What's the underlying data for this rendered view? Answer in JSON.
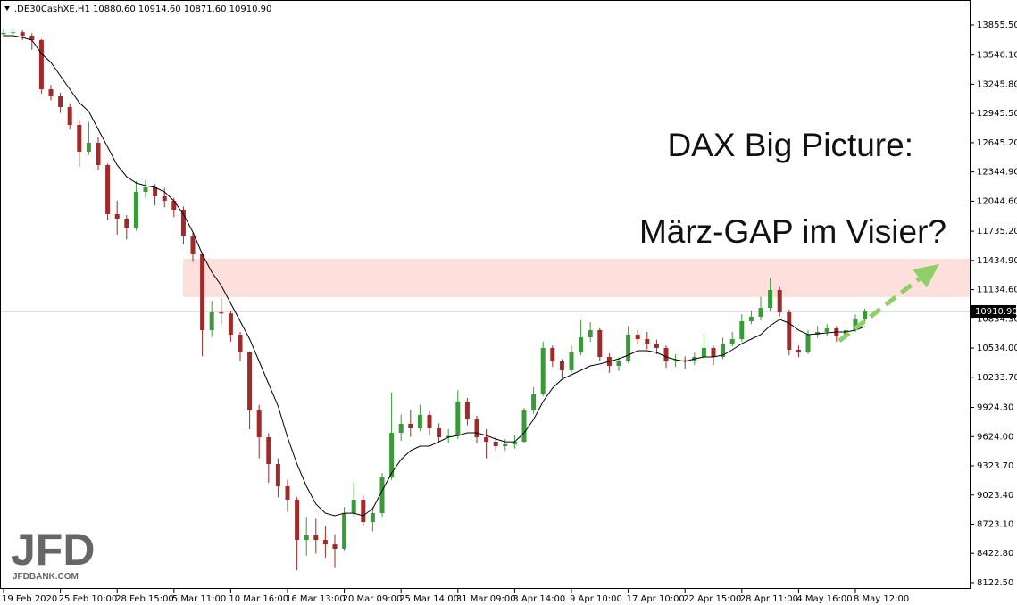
{
  "chart_data": {
    "type": "candlestick",
    "header_text": ".DE30CashXE,H1  10880.60 10914.60 10871.60 10910.90",
    "annotations": [
      "DAX Big Picture:",
      "März-GAP im Visier?"
    ],
    "logo": {
      "text": "JFD",
      "site": "JFDBANK.COM"
    },
    "up_color": "#3a9a3a",
    "down_color": "#9e2a2a",
    "ma_color": "#000000",
    "highlight_range": [
      11058,
      11452
    ],
    "highlight_color": "#fde0dc",
    "last_price": {
      "value": 10910.9,
      "label": "10910.90"
    },
    "ylim": [
      8058,
      14112
    ],
    "yticks": [
      {
        "value": 13855.5,
        "label": "13855.50"
      },
      {
        "value": 13546.1,
        "label": "13546.10"
      },
      {
        "value": 13245.8,
        "label": "13245.80"
      },
      {
        "value": 12945.5,
        "label": "12945.50"
      },
      {
        "value": 12645.2,
        "label": "12645.20"
      },
      {
        "value": 12344.9,
        "label": "12344.90"
      },
      {
        "value": 12044.6,
        "label": "12044.60"
      },
      {
        "value": 11735.2,
        "label": "11735.20"
      },
      {
        "value": 11434.9,
        "label": "11434.90"
      },
      {
        "value": 11134.6,
        "label": "11134.60"
      },
      {
        "value": 10834.3,
        "label": "10834.30"
      },
      {
        "value": 10534,
        "label": "10534.00"
      },
      {
        "value": 10233.7,
        "label": "10233.70"
      },
      {
        "value": 9924.3,
        "label": "9924.30"
      },
      {
        "value": 9624,
        "label": "9624.00"
      },
      {
        "value": 9323.7,
        "label": "9323.70"
      },
      {
        "value": 9023.4,
        "label": "9023.40"
      },
      {
        "value": 8723.1,
        "label": "8723.10"
      },
      {
        "value": 8422.8,
        "label": "8422.80"
      },
      {
        "value": 8122.5,
        "label": "8122.50"
      }
    ],
    "categories": [
      "19 Feb 2020",
      null,
      null,
      null,
      null,
      null,
      "25 Feb 10:00",
      null,
      null,
      null,
      null,
      null,
      "28 Feb 15:00",
      null,
      null,
      null,
      null,
      null,
      "5 Mar 11:00",
      null,
      null,
      null,
      null,
      null,
      "10 Mar 16:00",
      null,
      null,
      null,
      null,
      null,
      "16 Mar 13:00",
      null,
      null,
      null,
      null,
      null,
      "20 Mar 09:00",
      null,
      null,
      null,
      null,
      null,
      "25 Mar 14:00",
      null,
      null,
      null,
      null,
      null,
      "31 Mar 09:00",
      null,
      null,
      null,
      null,
      null,
      "3 Apr 14:00",
      null,
      null,
      null,
      null,
      null,
      "9 Apr 10:00",
      null,
      null,
      null,
      null,
      null,
      "17 Apr 10:00",
      null,
      null,
      null,
      null,
      null,
      "22 Apr 15:00",
      null,
      null,
      null,
      null,
      null,
      "28 Apr 11:00",
      null,
      null,
      null,
      null,
      null,
      "4 May 16:00",
      null,
      null,
      null,
      null,
      null,
      "8 May 12:00",
      null
    ],
    "ohlc": [
      [
        13760,
        13810,
        13730,
        13773
      ],
      [
        13773,
        13820,
        13740,
        13780
      ],
      [
        13780,
        13800,
        13700,
        13745
      ],
      [
        13745,
        13770,
        13600,
        13699
      ],
      [
        13699,
        13710,
        13150,
        13195
      ],
      [
        13195,
        13240,
        13080,
        13121
      ],
      [
        13121,
        13160,
        12950,
        13011
      ],
      [
        13011,
        13050,
        12780,
        12828
      ],
      [
        12828,
        12870,
        12400,
        12553
      ],
      [
        12553,
        12860,
        12520,
        12644
      ],
      [
        12644,
        12700,
        12360,
        12415
      ],
      [
        12415,
        12430,
        11850,
        11911
      ],
      [
        11911,
        12050,
        11700,
        11865
      ],
      [
        11865,
        11900,
        11650,
        11773
      ],
      [
        11773,
        12250,
        11740,
        12140
      ],
      [
        12140,
        12260,
        12080,
        12186
      ],
      [
        12186,
        12220,
        12000,
        12094
      ],
      [
        12094,
        12180,
        11980,
        12048
      ],
      [
        12048,
        12080,
        11880,
        11956
      ],
      [
        11956,
        11990,
        11600,
        11681
      ],
      [
        11681,
        11720,
        11420,
        11498
      ],
      [
        11498,
        11520,
        10450,
        10718
      ],
      [
        10718,
        11020,
        10650,
        10901
      ],
      [
        10901,
        11040,
        10780,
        10890
      ],
      [
        10890,
        10920,
        10600,
        10672
      ],
      [
        10672,
        10700,
        10400,
        10489
      ],
      [
        10489,
        10500,
        9700,
        9892
      ],
      [
        9892,
        9950,
        9400,
        9617
      ],
      [
        9617,
        9660,
        9150,
        9342
      ],
      [
        9342,
        9400,
        9000,
        9113
      ],
      [
        9113,
        9180,
        8850,
        8975
      ],
      [
        8975,
        9000,
        8250,
        8562
      ],
      [
        8562,
        8800,
        8400,
        8608
      ],
      [
        8608,
        8780,
        8420,
        8562
      ],
      [
        8562,
        8700,
        8380,
        8516
      ],
      [
        8516,
        8620,
        8280,
        8471
      ],
      [
        8471,
        8900,
        8450,
        8837
      ],
      [
        8837,
        9150,
        8800,
        8975
      ],
      [
        8975,
        9020,
        8700,
        8746
      ],
      [
        8746,
        8900,
        8650,
        8837
      ],
      [
        8837,
        9250,
        8800,
        9205
      ],
      [
        9205,
        10080,
        9180,
        9663
      ],
      [
        9663,
        9850,
        9580,
        9755
      ],
      [
        9755,
        9900,
        9620,
        9709
      ],
      [
        9709,
        9950,
        9680,
        9847
      ],
      [
        9847,
        9880,
        9640,
        9709
      ],
      [
        9709,
        9760,
        9560,
        9617
      ],
      [
        9617,
        9700,
        9560,
        9630
      ],
      [
        9630,
        10100,
        9600,
        9984
      ],
      [
        9984,
        10020,
        9740,
        9801
      ],
      [
        9801,
        9840,
        9560,
        9617
      ],
      [
        9617,
        9700,
        9400,
        9571
      ],
      [
        9571,
        9620,
        9480,
        9526
      ],
      [
        9526,
        9600,
        9480,
        9544
      ],
      [
        9544,
        9640,
        9500,
        9571
      ],
      [
        9571,
        9920,
        9560,
        9892
      ],
      [
        9892,
        10130,
        9860,
        10058
      ],
      [
        10058,
        10600,
        10040,
        10535
      ],
      [
        10535,
        10560,
        10340,
        10397
      ],
      [
        10397,
        10420,
        10220,
        10305
      ],
      [
        10305,
        10560,
        10280,
        10489
      ],
      [
        10489,
        10820,
        10460,
        10645
      ],
      [
        10645,
        10800,
        10600,
        10718
      ],
      [
        10718,
        10740,
        10400,
        10443
      ],
      [
        10443,
        10480,
        10280,
        10351
      ],
      [
        10351,
        10440,
        10300,
        10397
      ],
      [
        10397,
        10760,
        10380,
        10672
      ],
      [
        10672,
        10720,
        10570,
        10626
      ],
      [
        10626,
        10700,
        10520,
        10580
      ],
      [
        10580,
        10620,
        10470,
        10535
      ],
      [
        10535,
        10560,
        10330,
        10397
      ],
      [
        10397,
        10470,
        10340,
        10410
      ],
      [
        10410,
        10450,
        10320,
        10397
      ],
      [
        10397,
        10490,
        10360,
        10443
      ],
      [
        10443,
        10680,
        10420,
        10535
      ],
      [
        10535,
        10560,
        10360,
        10443
      ],
      [
        10443,
        10640,
        10420,
        10580
      ],
      [
        10580,
        10700,
        10550,
        10626
      ],
      [
        10626,
        10880,
        10600,
        10810
      ],
      [
        10810,
        10920,
        10780,
        10856
      ],
      [
        10856,
        11060,
        10820,
        10947
      ],
      [
        10947,
        11250,
        10920,
        11131
      ],
      [
        11131,
        11160,
        10860,
        10901
      ],
      [
        10901,
        10930,
        10460,
        10516
      ],
      [
        10516,
        10560,
        10440,
        10489
      ],
      [
        10489,
        10720,
        10470,
        10672
      ],
      [
        10672,
        10760,
        10640,
        10700
      ],
      [
        10700,
        10780,
        10660,
        10736
      ],
      [
        10736,
        10760,
        10600,
        10654
      ],
      [
        10654,
        10770,
        10630,
        10718
      ],
      [
        10718,
        10880,
        10700,
        10828
      ],
      [
        10828,
        10940,
        10800,
        10910.9
      ]
    ],
    "ma": [
      13745,
      13745,
      13727,
      13699,
      13562,
      13470,
      13332,
      13195,
      13057,
      12966,
      12782,
      12599,
      12415,
      12296,
      12232,
      12204,
      12186,
      12140,
      12048,
      11910,
      11727,
      11498,
      11314,
      11177,
      10993,
      10810,
      10626,
      10397,
      10168,
      9938,
      9617,
      9342,
      9113,
      8929,
      8837,
      8810,
      8837,
      8837,
      8810,
      8883,
      9067,
      9250,
      9388,
      9480,
      9526,
      9526,
      9571,
      9617,
      9636,
      9663,
      9663,
      9636,
      9599,
      9571,
      9571,
      9663,
      9801,
      9984,
      10122,
      10213,
      10259,
      10305,
      10351,
      10370,
      10397,
      10424,
      10461,
      10507,
      10507,
      10489,
      10443,
      10415,
      10397,
      10424,
      10443,
      10443,
      10461,
      10516,
      10580,
      10626,
      10672,
      10764,
      10828,
      10791,
      10718,
      10672,
      10681,
      10691,
      10700,
      10700,
      10718,
      10755
    ]
  }
}
